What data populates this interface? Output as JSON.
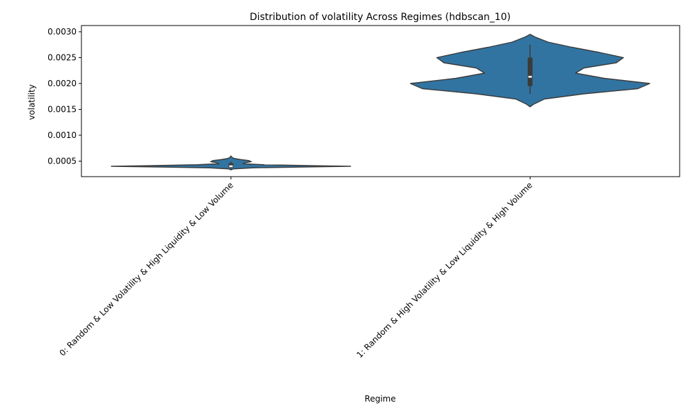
{
  "chart_data": {
    "type": "violin",
    "title": "Distribution of volatility Across Regimes (hdbscan_10)",
    "xlabel": "Regime",
    "ylabel": "volatility",
    "ylim": [
      0.0002,
      0.00312
    ],
    "yticks": [
      "0.0005",
      "0.0010",
      "0.0015",
      "0.0020",
      "0.0025",
      "0.0030"
    ],
    "ytick_values": [
      0.0005,
      0.001,
      0.0015,
      0.002,
      0.0025,
      0.003
    ],
    "categories": [
      "0: Random & Low Volatility & High Liquidity & Low Volume",
      "1: Random & High Volatility & Low Liquidity & High Volume"
    ],
    "fill_color": "#3274a1",
    "edge_color": "#3b3b3b",
    "grid": false,
    "violins": [
      {
        "category": "0: Random & Low Volatility & High Liquidity & Low Volume",
        "density_y": [
          0.00033,
          0.00035,
          0.00037,
          0.00039,
          0.0004,
          0.00041,
          0.00043,
          0.00045,
          0.00047,
          0.00049,
          0.00051,
          0.00053,
          0.00055,
          0.00057,
          0.0006
        ],
        "density_halfwidth": [
          0.0,
          0.02,
          0.18,
          0.7,
          1.0,
          0.72,
          0.28,
          0.1,
          0.12,
          0.17,
          0.15,
          0.08,
          0.03,
          0.01,
          0.0
        ],
        "q1": 0.00037,
        "median": 0.0004,
        "q3": 0.00046,
        "whisker_low": 0.00035,
        "whisker_high": 0.00049
      },
      {
        "category": "1: Random & High Volatility & Low Liquidity & High Volume",
        "density_y": [
          0.00155,
          0.0016,
          0.0017,
          0.0018,
          0.0019,
          0.002,
          0.0021,
          0.0022,
          0.0023,
          0.0024,
          0.0025,
          0.0026,
          0.0027,
          0.0028,
          0.0029,
          0.00295
        ],
        "density_halfwidth": [
          0.0,
          0.03,
          0.12,
          0.45,
          0.9,
          1.0,
          0.62,
          0.38,
          0.45,
          0.72,
          0.78,
          0.58,
          0.35,
          0.15,
          0.04,
          0.0
        ],
        "q1": 0.00195,
        "median": 0.00213,
        "q3": 0.0025,
        "whisker_low": 0.0018,
        "whisker_high": 0.00275
      }
    ]
  }
}
